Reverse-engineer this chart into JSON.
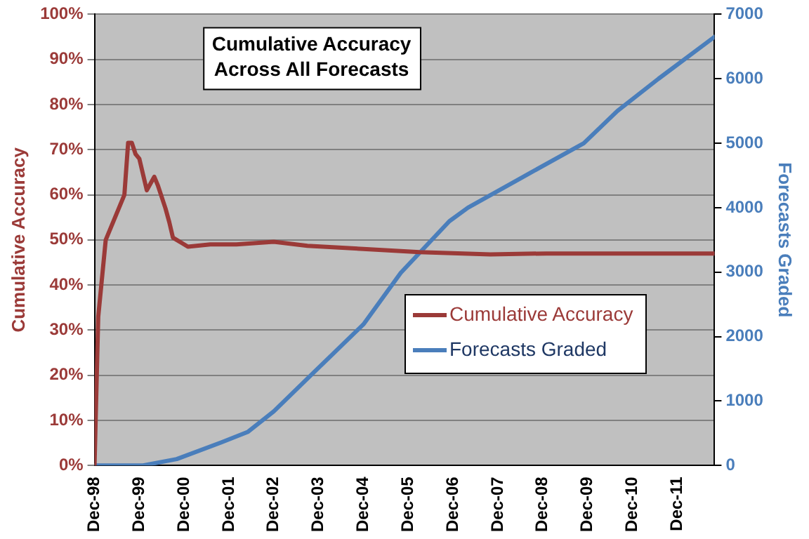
{
  "chart_data": {
    "type": "line",
    "title": "Cumulative Accuracy Across All Forecasts",
    "ylabel": "Cumulative Accuracy",
    "y2label": "Forecasts Graded",
    "xlim": [
      "1998-12",
      "2012-10"
    ],
    "xticks": [
      {
        "value": "1998-12",
        "label": "Dec-98"
      },
      {
        "value": "1999-12",
        "label": "Dec-99"
      },
      {
        "value": "2000-12",
        "label": "Dec-00"
      },
      {
        "value": "2001-12",
        "label": "Dec-01"
      },
      {
        "value": "2002-12",
        "label": "Dec-02"
      },
      {
        "value": "2003-12",
        "label": "Dec-03"
      },
      {
        "value": "2004-12",
        "label": "Dec-04"
      },
      {
        "value": "2005-12",
        "label": "Dec-05"
      },
      {
        "value": "2006-12",
        "label": "Dec-06"
      },
      {
        "value": "2007-12",
        "label": "Dec-07"
      },
      {
        "value": "2008-12",
        "label": "Dec-08"
      },
      {
        "value": "2009-12",
        "label": "Dec-09"
      },
      {
        "value": "2010-12",
        "label": "Dec-10"
      },
      {
        "value": "2011-12",
        "label": "Dec-11"
      }
    ],
    "ylim": [
      0,
      100
    ],
    "yticks": [
      {
        "value": 0,
        "label": "0%"
      },
      {
        "value": 10,
        "label": "10%"
      },
      {
        "value": 20,
        "label": "20%"
      },
      {
        "value": 30,
        "label": "30%"
      },
      {
        "value": 40,
        "label": "40%"
      },
      {
        "value": 50,
        "label": "50%"
      },
      {
        "value": 60,
        "label": "60%"
      },
      {
        "value": 70,
        "label": "70%"
      },
      {
        "value": 80,
        "label": "80%"
      },
      {
        "value": 90,
        "label": "90%"
      },
      {
        "value": 100,
        "label": "100%"
      }
    ],
    "y2lim": [
      0,
      7000
    ],
    "y2ticks": [
      0,
      1000,
      2000,
      3000,
      4000,
      5000,
      6000,
      7000
    ],
    "grid": "y",
    "legend": "right",
    "marker": "none",
    "line_style": "solid",
    "series": [
      {
        "name": "Cumulative Accuracy",
        "color": "#9b3a38",
        "x": [
          "1998-12",
          "1999-01",
          "1999-03",
          "1999-08",
          "1999-09",
          "1999-10",
          "1999-11",
          "1999-12",
          "2000-02",
          "2000-04",
          "2000-05",
          "2000-07",
          "2000-08",
          "2000-09",
          "2001-01",
          "2001-07",
          "2002-02",
          "2002-12",
          "2003-09",
          "2004-12",
          "2006-03",
          "2007-10",
          "2009-01",
          "2012-10"
        ],
        "values": [
          0,
          33,
          50,
          60,
          71.5,
          71.5,
          69,
          68,
          61,
          64,
          62,
          57,
          54,
          50.5,
          48.5,
          49,
          49,
          49.6,
          48.7,
          48,
          47.3,
          46.8,
          47,
          47
        ]
      },
      {
        "name": "Forecasts Graded",
        "color": "#4a7ebb",
        "axis": "y2",
        "x": [
          "1998-12",
          "2000-01",
          "2000-10",
          "2001-10",
          "2002-05",
          "2002-12",
          "2003-11",
          "2004-12",
          "2005-10",
          "2006-11",
          "2007-04",
          "2008-09",
          "2009-11",
          "2010-08",
          "2011-07",
          "2012-10"
        ],
        "values": [
          0,
          0,
          100,
          360,
          520,
          840,
          1460,
          2190,
          2990,
          3790,
          4000,
          4550,
          5000,
          5500,
          6000,
          6650
        ]
      }
    ]
  }
}
